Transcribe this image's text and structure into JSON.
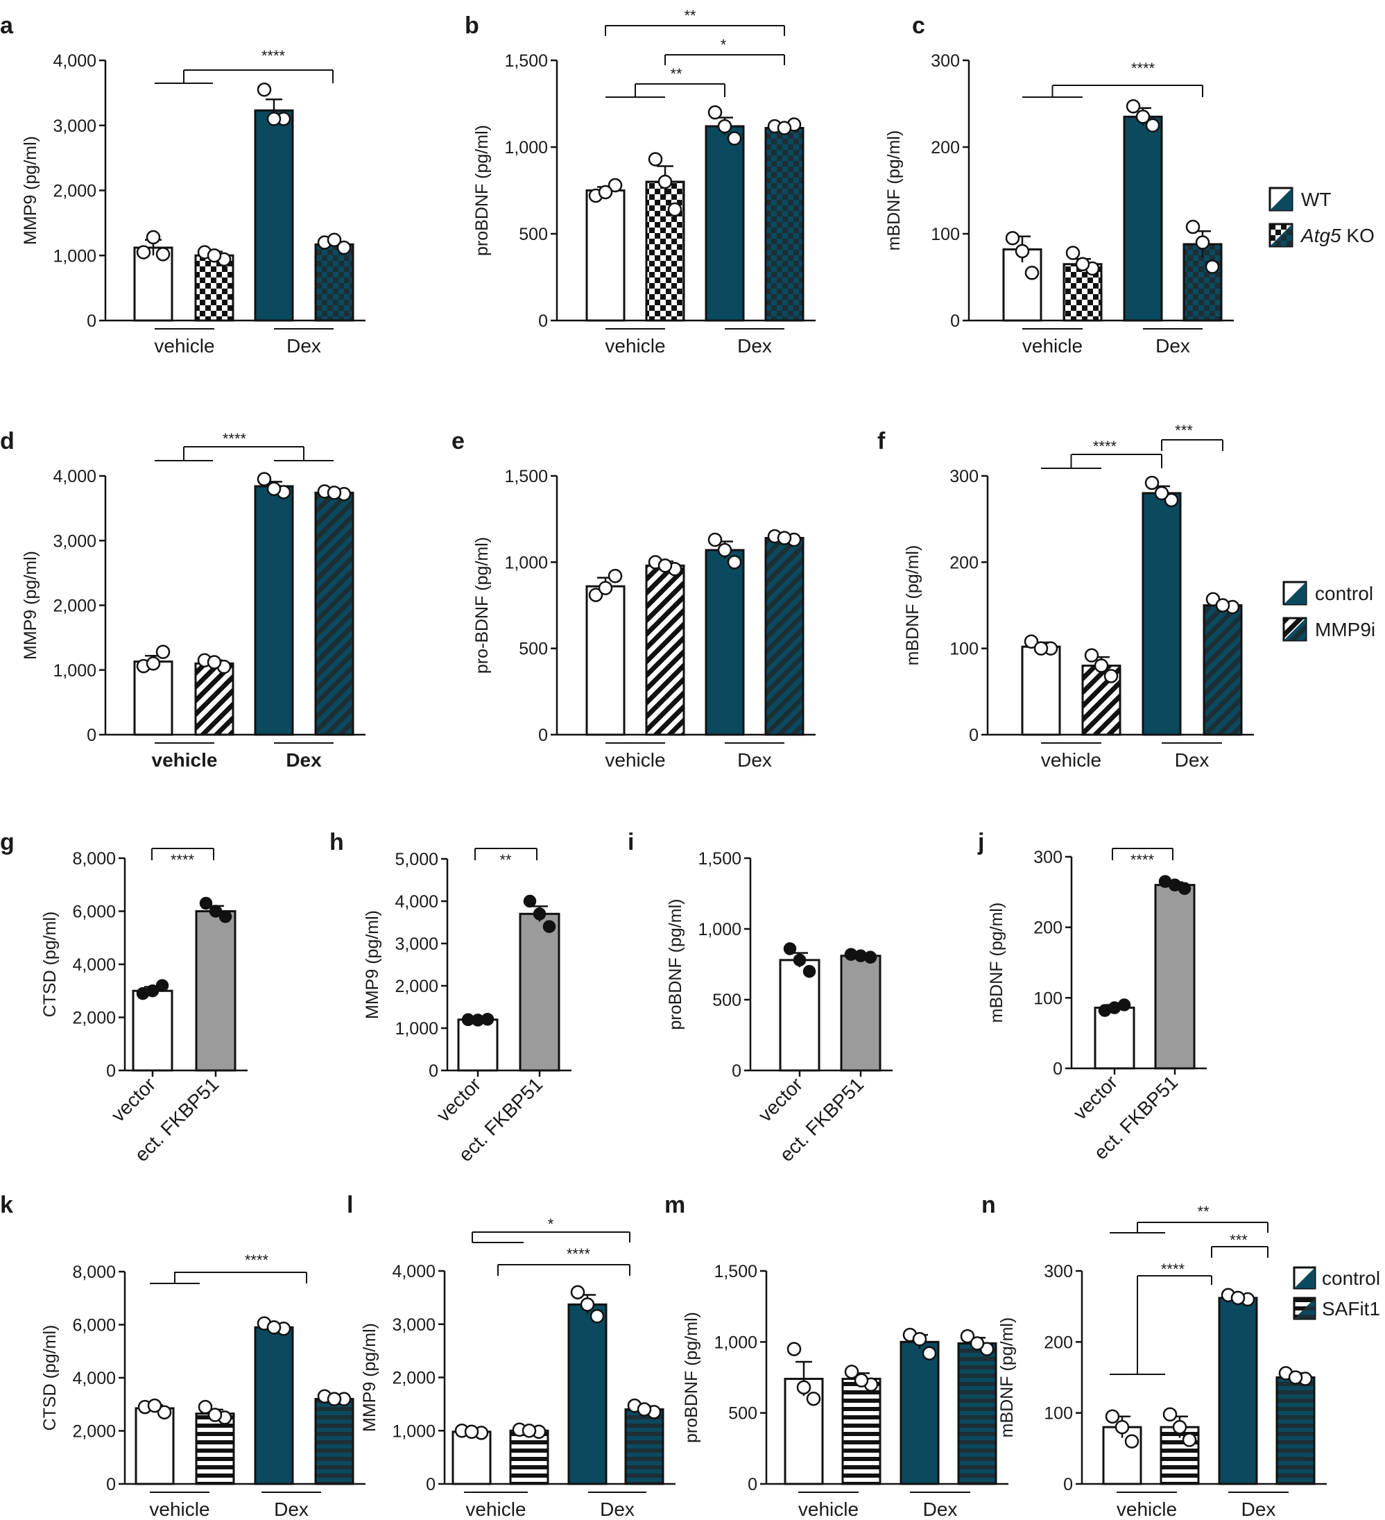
{
  "colors": {
    "teal": "#0b4a5e",
    "gray": "#9b9b9b",
    "black": "#111111"
  },
  "legends": [
    {
      "panel": "c",
      "entries": [
        {
          "text": "WT",
          "pattern": "wt"
        },
        {
          "text": "Atg5",
          "italic_suffix": " KO",
          "pattern": "checker"
        }
      ]
    },
    {
      "panel": "f",
      "entries": [
        {
          "text": "control",
          "pattern": "wt"
        },
        {
          "text": "MMP9i",
          "pattern": "diag"
        }
      ]
    },
    {
      "panel": "n",
      "entries": [
        {
          "text": "control",
          "pattern": "wt"
        },
        {
          "text": "SAFit1",
          "pattern": "horiz"
        }
      ]
    }
  ],
  "chart_data": [
    {
      "panel": "a",
      "type": "bar",
      "ylabel": "MMP9 (pg/ml)",
      "ylim": [
        0,
        4000
      ],
      "yticks": [
        "0",
        "1,000",
        "2,000",
        "3,000",
        "4,000"
      ],
      "groups": [
        "vehicle",
        "Dex"
      ],
      "bars": [
        {
          "value": 1120,
          "err": 120,
          "pattern": "white",
          "points": [
            1050,
            1020,
            1280
          ]
        },
        {
          "value": 1000,
          "err": 60,
          "pattern": "checker-white",
          "points": [
            1050,
            940,
            1000
          ]
        },
        {
          "value": 3230,
          "err": 170,
          "pattern": "teal",
          "points": [
            3550,
            3100,
            3100
          ]
        },
        {
          "value": 1170,
          "err": 40,
          "pattern": "checker-teal",
          "points": [
            1200,
            1120,
            1240
          ]
        }
      ],
      "sig": [
        {
          "label": "****",
          "type": "grp_vs_bar"
        }
      ]
    },
    {
      "panel": "b",
      "type": "bar",
      "ylabel": "proBDNF (pg/ml)",
      "ylim": [
        0,
        1500
      ],
      "yticks": [
        "0",
        "500",
        "1,000",
        "1,500"
      ],
      "groups": [
        "vehicle",
        "Dex"
      ],
      "bars": [
        {
          "value": 750,
          "err": 20,
          "pattern": "white",
          "points": [
            720,
            780,
            740
          ]
        },
        {
          "value": 800,
          "err": 90,
          "pattern": "checker-white",
          "points": [
            930,
            640,
            800
          ]
        },
        {
          "value": 1120,
          "err": 50,
          "pattern": "teal",
          "points": [
            1200,
            1050,
            1120
          ]
        },
        {
          "value": 1110,
          "err": 15,
          "pattern": "checker-teal",
          "points": [
            1120,
            1130,
            1110
          ]
        }
      ],
      "sig": [
        {
          "label": "**",
          "type": "bar_bar"
        },
        {
          "label": "*",
          "type": "bar_bar"
        },
        {
          "label": "**",
          "type": "grp_vs_bar"
        }
      ]
    },
    {
      "panel": "c",
      "type": "bar",
      "ylabel": "mBDNF (pg/ml)",
      "ylim": [
        0,
        300
      ],
      "yticks": [
        "0",
        "100",
        "200",
        "300"
      ],
      "groups": [
        "vehicle",
        "Dex"
      ],
      "bars": [
        {
          "value": 82,
          "err": 15,
          "pattern": "white",
          "points": [
            95,
            55,
            80
          ]
        },
        {
          "value": 65,
          "err": 6,
          "pattern": "checker-white",
          "points": [
            78,
            60,
            65
          ]
        },
        {
          "value": 235,
          "err": 10,
          "pattern": "teal",
          "points": [
            247,
            225,
            235
          ]
        },
        {
          "value": 88,
          "err": 15,
          "pattern": "checker-teal",
          "points": [
            108,
            62,
            90
          ]
        }
      ],
      "sig": [
        {
          "label": "****",
          "type": "grp_vs_bar"
        }
      ]
    },
    {
      "panel": "d",
      "type": "bar",
      "ylabel": "MMP9 (pg/ml)",
      "ylim": [
        0,
        4000
      ],
      "yticks": [
        "0",
        "1,000",
        "2,000",
        "3,000",
        "4,000"
      ],
      "groups": [
        "vehicle",
        "Dex"
      ],
      "bars": [
        {
          "value": 1130,
          "err": 90,
          "pattern": "white",
          "points": [
            1060,
            1280,
            1100
          ]
        },
        {
          "value": 1100,
          "err": 50,
          "pattern": "diag-white",
          "points": [
            1150,
            1050,
            1120
          ]
        },
        {
          "value": 3840,
          "err": 70,
          "pattern": "teal",
          "points": [
            3950,
            3750,
            3800
          ]
        },
        {
          "value": 3740,
          "err": 20,
          "pattern": "diag-teal",
          "points": [
            3760,
            3720,
            3740
          ]
        }
      ],
      "sig": [
        {
          "label": "****",
          "type": "grp_vs_grp"
        }
      ]
    },
    {
      "panel": "e",
      "type": "bar",
      "ylabel": "pro-BDNF (pg/ml)",
      "ylim": [
        0,
        1500
      ],
      "yticks": [
        "0",
        "500",
        "1,000",
        "1,500"
      ],
      "groups": [
        "vehicle",
        "Dex"
      ],
      "bars": [
        {
          "value": 860,
          "err": 50,
          "pattern": "white",
          "points": [
            810,
            920,
            850
          ]
        },
        {
          "value": 980,
          "err": 25,
          "pattern": "diag-white",
          "points": [
            1000,
            960,
            980
          ]
        },
        {
          "value": 1070,
          "err": 50,
          "pattern": "teal",
          "points": [
            1130,
            1000,
            1070
          ]
        },
        {
          "value": 1140,
          "err": 10,
          "pattern": "diag-teal",
          "points": [
            1150,
            1130,
            1140
          ]
        }
      ],
      "sig": []
    },
    {
      "panel": "f",
      "type": "bar",
      "ylabel": "mBDNF (pg/ml)",
      "ylim": [
        0,
        300
      ],
      "yticks": [
        "0",
        "100",
        "200",
        "300"
      ],
      "groups": [
        "vehicle",
        "Dex"
      ],
      "bars": [
        {
          "value": 102,
          "err": 5,
          "pattern": "white",
          "points": [
            108,
            100,
            100
          ]
        },
        {
          "value": 80,
          "err": 10,
          "pattern": "diag-white",
          "points": [
            92,
            68,
            80
          ]
        },
        {
          "value": 280,
          "err": 8,
          "pattern": "teal",
          "points": [
            292,
            272,
            280
          ]
        },
        {
          "value": 150,
          "err": 4,
          "pattern": "diag-teal",
          "points": [
            157,
            148,
            150
          ]
        }
      ],
      "sig": [
        {
          "label": "****",
          "type": "grp_vs_bar"
        },
        {
          "label": "***",
          "type": "bar_bar"
        }
      ]
    },
    {
      "panel": "g",
      "type": "bar",
      "ylabel": "CTSD (pg/ml)",
      "ylim": [
        0,
        8000
      ],
      "yticks": [
        "0",
        "2,000",
        "4,000",
        "6,000",
        "8,000"
      ],
      "categories": [
        "vector",
        "ect. FKBP51"
      ],
      "bars": [
        {
          "value": 3000,
          "err": 150,
          "pattern": "white",
          "points": [
            2900,
            3200,
            3000
          ]
        },
        {
          "value": 6000,
          "err": 200,
          "pattern": "gray",
          "points": [
            6300,
            5800,
            6000
          ]
        }
      ],
      "sig": [
        {
          "label": "****",
          "type": "bar_bar"
        }
      ]
    },
    {
      "panel": "h",
      "type": "bar",
      "ylabel": "MMP9 (pg/ml)",
      "ylim": [
        0,
        5000
      ],
      "yticks": [
        "0",
        "1,000",
        "2,000",
        "3,000",
        "4,000",
        "5,000"
      ],
      "categories": [
        "vector",
        "ect. FKBP51"
      ],
      "bars": [
        {
          "value": 1200,
          "err": 20,
          "pattern": "white",
          "points": [
            1200,
            1210,
            1190
          ]
        },
        {
          "value": 3700,
          "err": 180,
          "pattern": "gray",
          "points": [
            4000,
            3400,
            3700
          ]
        }
      ],
      "sig": [
        {
          "label": "**",
          "type": "bar_bar"
        }
      ]
    },
    {
      "panel": "i",
      "type": "bar",
      "ylabel": "proBDNF (pg/ml)",
      "ylim": [
        0,
        1500
      ],
      "yticks": [
        "0",
        "500",
        "1,000",
        "1,500"
      ],
      "categories": [
        "vector",
        "ect. FKBP51"
      ],
      "bars": [
        {
          "value": 780,
          "err": 50,
          "pattern": "white",
          "points": [
            860,
            700,
            780
          ]
        },
        {
          "value": 810,
          "err": 15,
          "pattern": "gray",
          "points": [
            820,
            800,
            810
          ]
        }
      ],
      "sig": []
    },
    {
      "panel": "j",
      "type": "bar",
      "ylabel": "mBDNF (pg/ml)",
      "ylim": [
        0,
        300
      ],
      "yticks": [
        "0",
        "100",
        "200",
        "300"
      ],
      "categories": [
        "vector",
        "ect. FKBP51"
      ],
      "bars": [
        {
          "value": 86,
          "err": 4,
          "pattern": "white",
          "points": [
            82,
            90,
            86
          ]
        },
        {
          "value": 260,
          "err": 4,
          "pattern": "gray",
          "points": [
            265,
            255,
            260
          ]
        }
      ],
      "sig": [
        {
          "label": "****",
          "type": "bar_bar"
        }
      ]
    },
    {
      "panel": "k",
      "type": "bar",
      "ylabel": "CTSD (pg/ml)",
      "ylim": [
        0,
        8000
      ],
      "yticks": [
        "0",
        "2,000",
        "4,000",
        "6,000",
        "8,000"
      ],
      "groups": [
        "vehicle",
        "Dex"
      ],
      "bars": [
        {
          "value": 2850,
          "err": 120,
          "pattern": "white",
          "points": [
            2900,
            2700,
            2950
          ]
        },
        {
          "value": 2650,
          "err": 150,
          "pattern": "horiz-white",
          "points": [
            2900,
            2500,
            2600
          ]
        },
        {
          "value": 5900,
          "err": 100,
          "pattern": "teal",
          "points": [
            6050,
            5850,
            5900
          ]
        },
        {
          "value": 3200,
          "err": 50,
          "pattern": "horiz-teal",
          "points": [
            3300,
            3200,
            3200
          ]
        }
      ],
      "sig": [
        {
          "label": "****",
          "type": "grp_vs_bar"
        }
      ]
    },
    {
      "panel": "l",
      "type": "bar",
      "ylabel": "MMP9 (pg/ml)",
      "ylim": [
        0,
        4000
      ],
      "yticks": [
        "0",
        "1,000",
        "2,000",
        "3,000",
        "4,000"
      ],
      "groups": [
        "vehicle",
        "Dex"
      ],
      "bars": [
        {
          "value": 980,
          "err": 30,
          "pattern": "white",
          "points": [
            1000,
            960,
            980
          ]
        },
        {
          "value": 1000,
          "err": 30,
          "pattern": "horiz-white",
          "points": [
            1020,
            980,
            1000
          ]
        },
        {
          "value": 3370,
          "err": 180,
          "pattern": "teal",
          "points": [
            3600,
            3150,
            3370
          ]
        },
        {
          "value": 1400,
          "err": 60,
          "pattern": "horiz-teal",
          "points": [
            1470,
            1350,
            1400
          ]
        }
      ],
      "sig": [
        {
          "label": "*",
          "type": "grp_vs_bar"
        },
        {
          "label": "****",
          "type": "grp_vs_bar"
        }
      ]
    },
    {
      "panel": "m",
      "type": "bar",
      "ylabel": "proBDNF (pg/ml)",
      "ylim": [
        0,
        1500
      ],
      "yticks": [
        "0",
        "500",
        "1,000",
        "1,500"
      ],
      "groups": [
        "vehicle",
        "Dex"
      ],
      "bars": [
        {
          "value": 740,
          "err": 120,
          "pattern": "white",
          "points": [
            950,
            600,
            680
          ]
        },
        {
          "value": 740,
          "err": 40,
          "pattern": "horiz-white",
          "points": [
            790,
            700,
            730
          ]
        },
        {
          "value": 1000,
          "err": 50,
          "pattern": "teal",
          "points": [
            1050,
            920,
            1020
          ]
        },
        {
          "value": 990,
          "err": 40,
          "pattern": "horiz-teal",
          "points": [
            1040,
            950,
            990
          ]
        }
      ],
      "sig": []
    },
    {
      "panel": "n",
      "type": "bar",
      "ylabel": "mBDNF (pg/ml)",
      "ylim": [
        0,
        300
      ],
      "yticks": [
        "0",
        "100",
        "200",
        "300"
      ],
      "groups": [
        "vehicle",
        "Dex"
      ],
      "bars": [
        {
          "value": 80,
          "err": 15,
          "pattern": "white",
          "points": [
            95,
            60,
            80
          ]
        },
        {
          "value": 80,
          "err": 15,
          "pattern": "horiz-white",
          "points": [
            98,
            62,
            80
          ]
        },
        {
          "value": 262,
          "err": 5,
          "pattern": "teal",
          "points": [
            266,
            260,
            262
          ]
        },
        {
          "value": 150,
          "err": 6,
          "pattern": "horiz-teal",
          "points": [
            156,
            148,
            150
          ]
        }
      ],
      "sig": [
        {
          "label": "**",
          "type": "grp_vs_bar"
        },
        {
          "label": "***",
          "type": "bar_bar"
        },
        {
          "label": "****",
          "type": "grp_vs_bar"
        }
      ]
    }
  ]
}
